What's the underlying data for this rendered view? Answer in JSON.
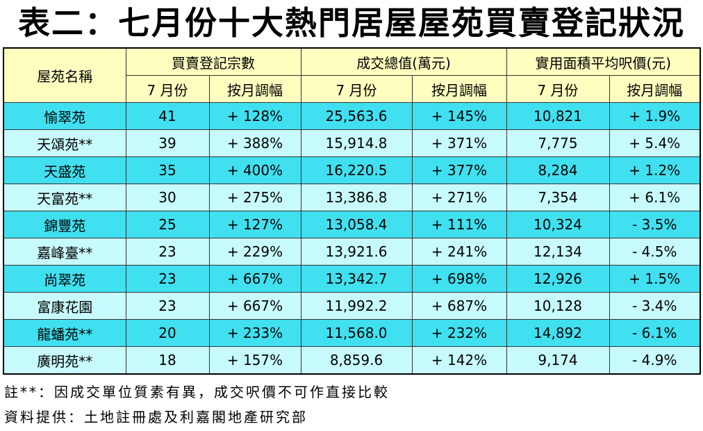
{
  "title": "表二：七月份十大熱門居屋屋苑買賣登記狀況",
  "headers": {
    "estate": "屋苑名稱",
    "groups": [
      "買賣登記宗數",
      "成交總值(萬元)",
      "實用面積平均呎價(元)"
    ],
    "sub": [
      "7 月份",
      "按月調幅",
      "7 月份",
      "按月調幅",
      "7 月份",
      "按月調幅"
    ]
  },
  "rows": [
    [
      "愉翠苑",
      "41",
      "+ 128%",
      "25,563.6",
      "+ 145%",
      "10,821",
      "+ 1.9%"
    ],
    [
      "天頌苑**",
      "39",
      "+ 388%",
      "15,914.8",
      "+ 371%",
      "7,775",
      "+ 5.4%"
    ],
    [
      "天盛苑",
      "35",
      "+ 400%",
      "16,220.5",
      "+ 377%",
      "8,284",
      "+ 1.2%"
    ],
    [
      "天富苑**",
      "30",
      "+ 275%",
      "13,386.8",
      "+ 271%",
      "7,354",
      "+ 6.1%"
    ],
    [
      "錦豐苑",
      "25",
      "+ 127%",
      "13,058.4",
      "+ 111%",
      "10,324",
      "- 3.5%"
    ],
    [
      "嘉峰臺**",
      "23",
      "+ 229%",
      "13,921.6",
      "+ 241%",
      "12,134",
      "- 4.5%"
    ],
    [
      "尚翠苑",
      "23",
      "+ 667%",
      "13,342.7",
      "+ 698%",
      "12,926",
      "+ 1.5%"
    ],
    [
      "富康花園",
      "23",
      "+ 667%",
      "11,992.2",
      "+ 687%",
      "10,128",
      "- 3.4%"
    ],
    [
      "龍蟠苑**",
      "20",
      "+ 233%",
      "11,568.0",
      "+ 232%",
      "14,892",
      "- 6.1%"
    ],
    [
      "廣明苑**",
      "18",
      "+ 157%",
      "8,859.6",
      "+ 142%",
      "9,174",
      "- 4.9%"
    ]
  ],
  "notes": {
    "note1": "註**：因成交單位質素有異，成交呎價不可作直接比較",
    "source": "資料提供：土地註冊處及利嘉閣地產研究部"
  },
  "colors": {
    "header_bg": "#ffffc0",
    "row_dark": "#40e0f0",
    "row_light": "#c8fbfd"
  }
}
